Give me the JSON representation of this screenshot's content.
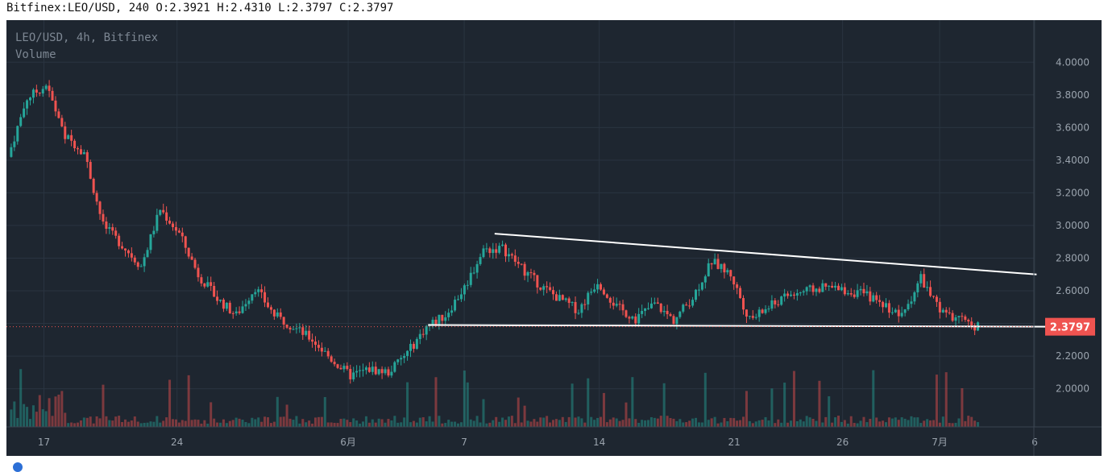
{
  "header": {
    "text": "Bitfinex:LEO/USD, 240 O:2.3921 H:2.4310 L:2.3797 C:2.3797"
  },
  "legend": {
    "symbol_line": "LEO/USD, 4h, Bitfinex",
    "volume_label": "Volume"
  },
  "colors": {
    "background": "#1e2630",
    "up": "#26a69a",
    "down": "#ef5350",
    "grid": "#2a3440",
    "trendline": "#ffffff",
    "price_tag": "#ef5350"
  },
  "chart_data": {
    "type": "candlestick",
    "price_axis": {
      "ticks": [
        "4.0000",
        "3.8000",
        "3.6000",
        "3.4000",
        "3.2000",
        "3.0000",
        "2.8000",
        "2.6000",
        "2.4000",
        "2.2000",
        "2.0000"
      ],
      "ylim": [
        1.85,
        4.1
      ]
    },
    "time_axis": {
      "ticks": [
        "17",
        "24",
        "6月",
        "7",
        "14",
        "21",
        "26",
        "7月",
        "6"
      ]
    },
    "last_price": "2.3797",
    "daily_path": [
      [
        0,
        3.42
      ],
      [
        1,
        3.78
      ],
      [
        2,
        3.86
      ],
      [
        3,
        3.55
      ],
      [
        4,
        3.45
      ],
      [
        5,
        3.0
      ],
      [
        6,
        2.88
      ],
      [
        7,
        2.75
      ],
      [
        8,
        3.1
      ],
      [
        9,
        2.95
      ],
      [
        10,
        2.7
      ],
      [
        11,
        2.55
      ],
      [
        12,
        2.45
      ],
      [
        13,
        2.62
      ],
      [
        14,
        2.45
      ],
      [
        15,
        2.38
      ],
      [
        16,
        2.3
      ],
      [
        17,
        2.18
      ],
      [
        18,
        2.08
      ],
      [
        19,
        2.12
      ],
      [
        20,
        2.1
      ],
      [
        21,
        2.22
      ],
      [
        22,
        2.38
      ],
      [
        23,
        2.45
      ],
      [
        24,
        2.62
      ],
      [
        25,
        2.85
      ],
      [
        26,
        2.86
      ],
      [
        27,
        2.74
      ],
      [
        28,
        2.63
      ],
      [
        29,
        2.55
      ],
      [
        30,
        2.48
      ],
      [
        31,
        2.66
      ],
      [
        32,
        2.5
      ],
      [
        33,
        2.43
      ],
      [
        34,
        2.52
      ],
      [
        35,
        2.42
      ],
      [
        36,
        2.56
      ],
      [
        37,
        2.78
      ],
      [
        38,
        2.7
      ],
      [
        39,
        2.42
      ],
      [
        40,
        2.5
      ],
      [
        41,
        2.57
      ],
      [
        42,
        2.6
      ],
      [
        43,
        2.62
      ],
      [
        44,
        2.6
      ],
      [
        45,
        2.58
      ],
      [
        46,
        2.52
      ],
      [
        47,
        2.44
      ],
      [
        48,
        2.68
      ],
      [
        49,
        2.47
      ],
      [
        50,
        2.42
      ],
      [
        51,
        2.38
      ]
    ],
    "trendlines": [
      {
        "type": "resistance",
        "from": [
          25.5,
          2.95
        ],
        "to": [
          54.0,
          2.7
        ]
      },
      {
        "type": "support",
        "from": [
          22.0,
          2.39
        ],
        "to": [
          55.0,
          2.38
        ]
      }
    ]
  }
}
